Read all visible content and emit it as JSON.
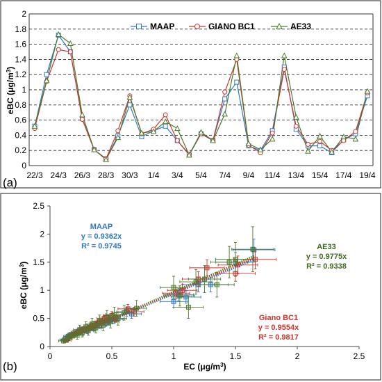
{
  "chart_data": [
    {
      "type": "line",
      "panel_label": "(a)",
      "ylabel": "eBC (μg/m",
      "ylabel_sup": "3",
      "ylabel_close": ")",
      "ylim": [
        0,
        2
      ],
      "yticks": [
        0,
        0.2,
        0.4,
        0.6,
        0.8,
        1,
        1.2,
        1.4,
        1.6,
        1.8,
        2
      ],
      "ytick_labels": [
        "0",
        "0.2",
        "0.4",
        "0.6",
        "0.8",
        "1",
        "1.2",
        "1.4",
        "1.6",
        "1.8",
        "2"
      ],
      "grid": "horizontal dashed",
      "legend_position": "top-right",
      "x_tick_labels": [
        "22/3",
        "24/3",
        "26/3",
        "28/3",
        "30/3",
        "1/4",
        "3/4",
        "5/4",
        "7/4",
        "9/4",
        "11/4",
        "13/4",
        "15/4",
        "17/4",
        "19/4"
      ],
      "n_points": 29,
      "series": [
        {
          "name": "MAAP",
          "color": "#2f78c4",
          "marker": "square",
          "values": [
            0.52,
            1.2,
            1.72,
            1.5,
            0.62,
            0.21,
            0.09,
            0.39,
            0.8,
            0.38,
            0.46,
            0.52,
            0.33,
            0.14,
            0.42,
            0.33,
            0.88,
            1.1,
            0.26,
            0.2,
            0.46,
            1.3,
            0.48,
            0.26,
            0.26,
            0.17,
            0.34,
            0.42,
            0.92
          ]
        },
        {
          "name": "GIANO BC1",
          "color": "#d0332a",
          "marker": "circle",
          "values": [
            0.49,
            1.11,
            1.53,
            1.5,
            0.61,
            0.21,
            0.09,
            0.46,
            0.92,
            0.42,
            0.48,
            0.67,
            0.33,
            0.15,
            0.42,
            0.33,
            0.97,
            1.4,
            0.27,
            0.17,
            0.43,
            1.27,
            0.52,
            0.28,
            0.32,
            0.2,
            0.33,
            0.45,
            0.96
          ]
        },
        {
          "name": "AE33",
          "color": "#4a7a2a",
          "marker": "triangle",
          "values": [
            0.52,
            1.12,
            1.73,
            1.61,
            0.67,
            0.21,
            0.08,
            0.37,
            0.9,
            0.43,
            0.45,
            0.58,
            0.49,
            0.14,
            0.44,
            0.33,
            0.68,
            1.45,
            0.29,
            0.21,
            0.35,
            1.45,
            0.64,
            0.19,
            0.39,
            0.18,
            0.38,
            0.35,
            0.98
          ]
        }
      ]
    },
    {
      "type": "scatter",
      "panel_label": "(b)",
      "xlabel": "EC (μg/m",
      "xlabel_sup": "3",
      "xlabel_close": ")",
      "ylabel": "eBC (μg/m",
      "ylabel_sup": "3",
      "ylabel_close": ")",
      "xlim": [
        0,
        2.5
      ],
      "ylim": [
        0,
        2.5
      ],
      "xtick_labels": [
        "0",
        "0.5",
        "1",
        "1.5",
        "2",
        "2.5"
      ],
      "ytick_labels": [
        "0",
        "0.5",
        "1",
        "1.5",
        "2",
        "2.5"
      ],
      "grid": "none",
      "annotations": [
        {
          "title": "MAAP",
          "equation": "y = 0.9362x",
          "r2": "R² = 0.9745",
          "color": "#2f78c4"
        },
        {
          "title": "AE33",
          "equation": "y = 0.9775x",
          "r2": "R² = 0.9338",
          "color": "#3d6a1e"
        },
        {
          "title": "Giano BC1",
          "equation": "y = 0.9554x",
          "r2": "R² = 0.9817",
          "color": "#d0332a"
        }
      ],
      "fits": [
        {
          "series": "MAAP",
          "slope": 0.9362,
          "color": "#2f78c4"
        },
        {
          "series": "GIANO BC1",
          "slope": 0.9554,
          "color": "#d0332a"
        },
        {
          "series": "AE33",
          "slope": 0.9775,
          "color": "#4a7a2a"
        }
      ],
      "fit_x_range": [
        0.1,
        1.65
      ],
      "series": [
        {
          "name": "MAAP",
          "color": "#2f78c4",
          "points": [
            [
              0.12,
              0.12,
              0.04,
              0.03
            ],
            [
              0.15,
              0.18,
              0.04,
              0.03
            ],
            [
              0.17,
              0.2,
              0.04,
              0.04
            ],
            [
              0.2,
              0.22,
              0.05,
              0.04
            ],
            [
              0.22,
              0.26,
              0.05,
              0.04
            ],
            [
              0.24,
              0.27,
              0.05,
              0.05
            ],
            [
              0.25,
              0.24,
              0.05,
              0.04
            ],
            [
              0.27,
              0.3,
              0.05,
              0.05
            ],
            [
              0.3,
              0.28,
              0.05,
              0.05
            ],
            [
              0.32,
              0.33,
              0.05,
              0.05
            ],
            [
              0.34,
              0.36,
              0.05,
              0.05
            ],
            [
              0.36,
              0.33,
              0.06,
              0.05
            ],
            [
              0.38,
              0.4,
              0.06,
              0.06
            ],
            [
              0.4,
              0.38,
              0.06,
              0.06
            ],
            [
              0.42,
              0.43,
              0.06,
              0.06
            ],
            [
              0.45,
              0.42,
              0.06,
              0.06
            ],
            [
              0.48,
              0.46,
              0.07,
              0.07
            ],
            [
              0.5,
              0.52,
              0.07,
              0.07
            ],
            [
              0.52,
              0.48,
              0.07,
              0.07
            ],
            [
              0.62,
              0.62,
              0.08,
              0.08
            ],
            [
              0.66,
              0.58,
              0.08,
              0.08
            ],
            [
              1.0,
              0.8,
              0.11,
              0.1
            ],
            [
              1.04,
              0.92,
              0.12,
              0.11
            ],
            [
              1.1,
              0.88,
              0.12,
              0.11
            ],
            [
              1.2,
              1.1,
              0.13,
              0.13
            ],
            [
              1.3,
              1.1,
              0.14,
              0.13
            ],
            [
              1.5,
              1.5,
              0.16,
              0.17
            ],
            [
              1.65,
              1.72,
              0.17,
              0.19
            ]
          ]
        },
        {
          "name": "GIANO BC1",
          "color": "#d0332a",
          "points": [
            [
              0.13,
              0.11,
              0.04,
              0.03
            ],
            [
              0.16,
              0.17,
              0.04,
              0.03
            ],
            [
              0.18,
              0.21,
              0.04,
              0.04
            ],
            [
              0.21,
              0.23,
              0.05,
              0.04
            ],
            [
              0.23,
              0.25,
              0.05,
              0.04
            ],
            [
              0.26,
              0.29,
              0.05,
              0.05
            ],
            [
              0.28,
              0.31,
              0.05,
              0.05
            ],
            [
              0.31,
              0.32,
              0.05,
              0.05
            ],
            [
              0.33,
              0.35,
              0.05,
              0.05
            ],
            [
              0.36,
              0.37,
              0.06,
              0.05
            ],
            [
              0.39,
              0.42,
              0.06,
              0.06
            ],
            [
              0.42,
              0.44,
              0.06,
              0.06
            ],
            [
              0.44,
              0.5,
              0.06,
              0.06
            ],
            [
              0.47,
              0.47,
              0.07,
              0.07
            ],
            [
              0.5,
              0.55,
              0.07,
              0.07
            ],
            [
              0.53,
              0.5,
              0.07,
              0.07
            ],
            [
              0.63,
              0.67,
              0.08,
              0.08
            ],
            [
              0.68,
              0.62,
              0.08,
              0.08
            ],
            [
              1.02,
              0.95,
              0.11,
              0.1
            ],
            [
              1.07,
              1.0,
              0.12,
              0.11
            ],
            [
              1.2,
              1.2,
              0.13,
              0.13
            ],
            [
              1.27,
              1.4,
              0.14,
              0.14
            ],
            [
              1.5,
              1.3,
              0.16,
              0.14
            ],
            [
              1.52,
              1.45,
              0.16,
              0.16
            ],
            [
              1.66,
              1.55,
              0.17,
              0.17
            ]
          ]
        },
        {
          "name": "AE33",
          "color": "#4a7a2a",
          "points": [
            [
              0.11,
              0.1,
              0.04,
              0.04
            ],
            [
              0.14,
              0.14,
              0.04,
              0.05
            ],
            [
              0.16,
              0.19,
              0.04,
              0.06
            ],
            [
              0.19,
              0.22,
              0.05,
              0.07
            ],
            [
              0.22,
              0.2,
              0.05,
              0.07
            ],
            [
              0.24,
              0.3,
              0.05,
              0.08
            ],
            [
              0.26,
              0.24,
              0.05,
              0.07
            ],
            [
              0.29,
              0.35,
              0.05,
              0.09
            ],
            [
              0.31,
              0.28,
              0.05,
              0.08
            ],
            [
              0.34,
              0.4,
              0.05,
              0.1
            ],
            [
              0.37,
              0.33,
              0.06,
              0.09
            ],
            [
              0.4,
              0.45,
              0.06,
              0.11
            ],
            [
              0.43,
              0.38,
              0.06,
              0.1
            ],
            [
              0.46,
              0.52,
              0.06,
              0.12
            ],
            [
              0.49,
              0.44,
              0.07,
              0.11
            ],
            [
              0.52,
              0.57,
              0.07,
              0.13
            ],
            [
              0.55,
              0.5,
              0.07,
              0.12
            ],
            [
              0.6,
              0.6,
              0.08,
              0.13
            ],
            [
              0.7,
              0.68,
              0.08,
              0.14
            ],
            [
              1.0,
              1.05,
              0.11,
              0.2
            ],
            [
              1.05,
              0.9,
              0.12,
              0.18
            ],
            [
              1.12,
              0.7,
              0.12,
              0.2
            ],
            [
              1.18,
              1.15,
              0.13,
              0.22
            ],
            [
              1.25,
              1.2,
              0.13,
              0.24
            ],
            [
              1.35,
              1.1,
              0.14,
              0.22
            ],
            [
              1.45,
              1.5,
              0.15,
              0.28
            ],
            [
              1.5,
              1.55,
              0.16,
              0.3
            ],
            [
              1.64,
              1.73,
              0.17,
              0.4
            ]
          ]
        }
      ]
    }
  ]
}
